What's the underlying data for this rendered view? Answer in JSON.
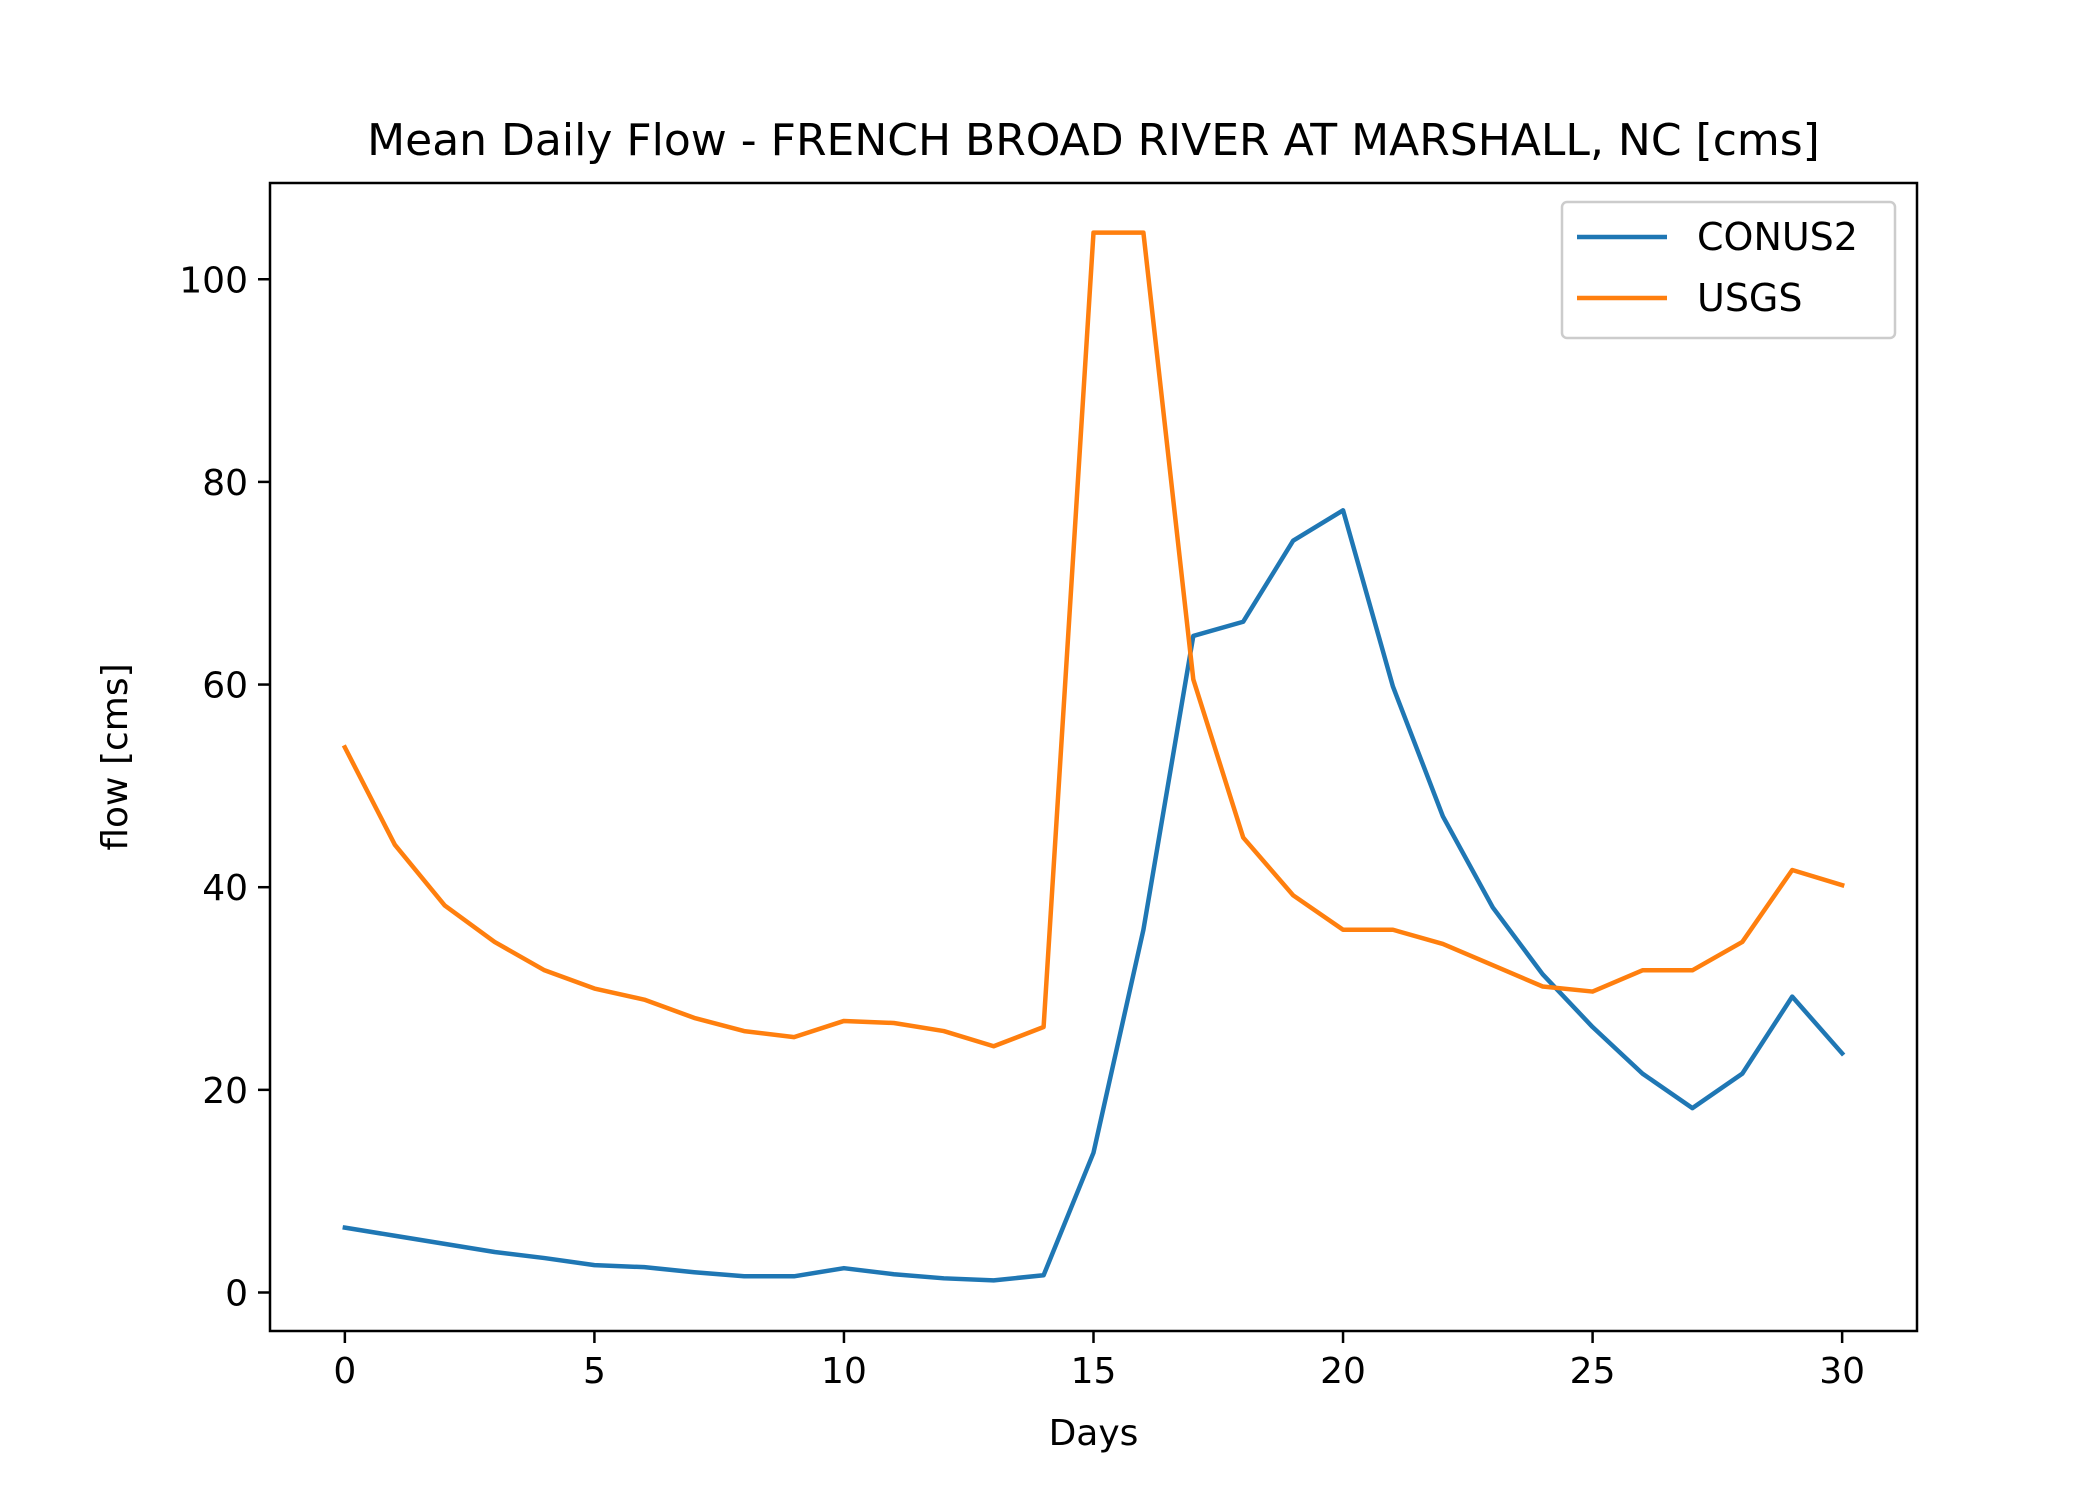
{
  "colors": {
    "conus2": "#1f77b4",
    "usgs": "#ff7f0e"
  },
  "chart_data": {
    "type": "line",
    "title": "Mean Daily Flow - FRENCH BROAD RIVER AT MARSHALL, NC [cms]",
    "xlabel": "Days",
    "ylabel": "flow [cms]",
    "xlim": [
      -1.5,
      31.5
    ],
    "ylim": [
      -3.8,
      109.5
    ],
    "xticks": [
      0,
      5,
      10,
      15,
      20,
      25,
      30
    ],
    "xtick_labels": [
      "0",
      "5",
      "10",
      "15",
      "20",
      "25",
      "30"
    ],
    "yticks": [
      0,
      20,
      40,
      60,
      80,
      100
    ],
    "ytick_labels": [
      "0",
      "20",
      "40",
      "60",
      "80",
      "100"
    ],
    "grid": false,
    "legend_position": "top-right",
    "x": [
      0,
      1,
      2,
      3,
      4,
      5,
      6,
      7,
      8,
      9,
      10,
      11,
      12,
      13,
      14,
      15,
      16,
      17,
      18,
      19,
      20,
      21,
      22,
      23,
      24,
      25,
      26,
      27,
      28,
      29,
      30
    ],
    "series": [
      {
        "name": "CONUS2",
        "color": "#1f77b4",
        "values": [
          6.4,
          5.6,
          4.8,
          4.0,
          3.4,
          2.7,
          2.5,
          2.0,
          1.6,
          1.6,
          2.4,
          1.8,
          1.4,
          1.2,
          1.7,
          13.8,
          35.8,
          64.8,
          66.2,
          74.2,
          77.2,
          59.8,
          47.0,
          38.0,
          31.4,
          26.2,
          21.6,
          18.2,
          21.6,
          29.2,
          23.6
        ]
      },
      {
        "name": "USGS",
        "color": "#ff7f0e",
        "values": [
          53.8,
          44.2,
          38.2,
          34.6,
          31.8,
          30.0,
          28.9,
          27.1,
          25.8,
          25.2,
          26.8,
          26.6,
          25.8,
          24.3,
          26.2,
          104.6,
          104.6,
          60.5,
          44.9,
          39.2,
          35.8,
          35.8,
          34.4,
          32.3,
          30.2,
          29.7,
          31.8,
          31.8,
          34.6,
          41.7,
          40.2
        ]
      }
    ]
  }
}
